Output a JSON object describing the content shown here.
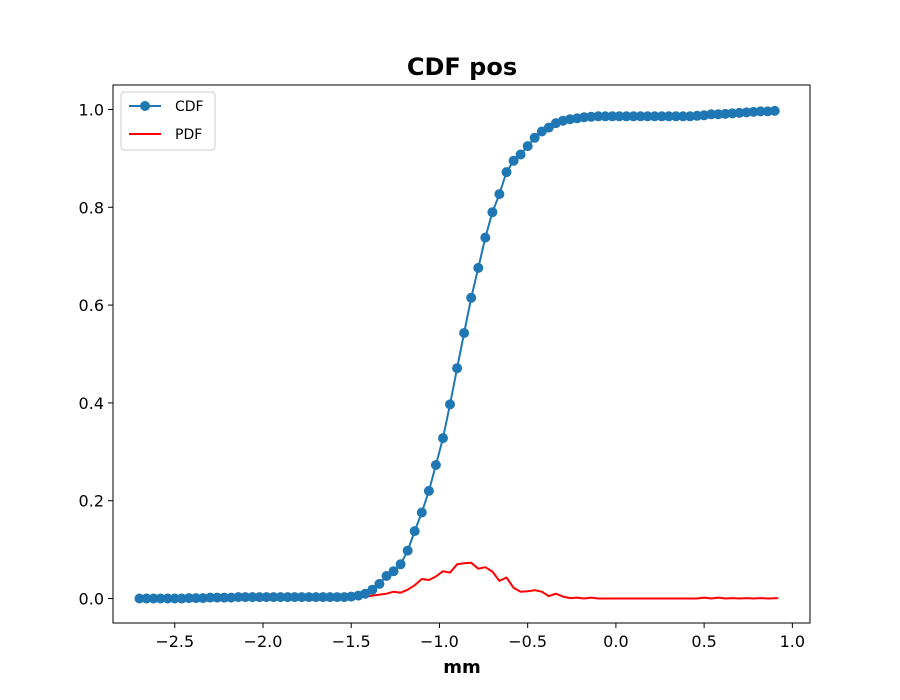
{
  "chart_data": {
    "type": "line",
    "title": "CDF pos",
    "xlabel": "mm",
    "ylabel": "",
    "xlim": [
      -2.85,
      1.1
    ],
    "ylim": [
      -0.05,
      1.05
    ],
    "xticks": [
      -2.5,
      -2.0,
      -1.5,
      -1.0,
      -0.5,
      0.0,
      0.5,
      1.0
    ],
    "xtick_labels": [
      "−2.5",
      "−2.0",
      "−1.5",
      "−1.0",
      "−0.5",
      "0.0",
      "0.5",
      "1.0"
    ],
    "yticks": [
      0.0,
      0.2,
      0.4,
      0.6,
      0.8,
      1.0
    ],
    "ytick_labels": [
      "0.0",
      "0.2",
      "0.4",
      "0.6",
      "0.8",
      "1.0"
    ],
    "legend_position": "top-left",
    "series": [
      {
        "name": "CDF",
        "color": "#1f77b4",
        "marker": "circle",
        "x": [
          -2.7,
          -2.66,
          -2.62,
          -2.58,
          -2.54,
          -2.5,
          -2.46,
          -2.42,
          -2.38,
          -2.34,
          -2.3,
          -2.26,
          -2.22,
          -2.18,
          -2.14,
          -2.1,
          -2.06,
          -2.02,
          -1.98,
          -1.94,
          -1.9,
          -1.86,
          -1.82,
          -1.78,
          -1.74,
          -1.7,
          -1.66,
          -1.62,
          -1.58,
          -1.54,
          -1.5,
          -1.46,
          -1.42,
          -1.38,
          -1.34,
          -1.3,
          -1.26,
          -1.22,
          -1.18,
          -1.14,
          -1.1,
          -1.06,
          -1.02,
          -0.98,
          -0.94,
          -0.9,
          -0.86,
          -0.82,
          -0.78,
          -0.74,
          -0.7,
          -0.66,
          -0.62,
          -0.58,
          -0.54,
          -0.5,
          -0.46,
          -0.42,
          -0.38,
          -0.34,
          -0.3,
          -0.26,
          -0.22,
          -0.18,
          -0.14,
          -0.1,
          -0.06,
          -0.02,
          0.02,
          0.06,
          0.1,
          0.14,
          0.18,
          0.22,
          0.26,
          0.3,
          0.34,
          0.38,
          0.42,
          0.46,
          0.5,
          0.54,
          0.58,
          0.62,
          0.66,
          0.7,
          0.74,
          0.78,
          0.82,
          0.86,
          0.9
        ],
        "y": [
          0.0,
          0.0,
          0.0,
          0.0,
          0.0,
          0.0,
          0.0,
          0.001,
          0.001,
          0.001,
          0.002,
          0.002,
          0.002,
          0.002,
          0.003,
          0.003,
          0.003,
          0.003,
          0.003,
          0.003,
          0.003,
          0.003,
          0.003,
          0.003,
          0.003,
          0.003,
          0.003,
          0.003,
          0.003,
          0.003,
          0.004,
          0.006,
          0.01,
          0.018,
          0.03,
          0.046,
          0.056,
          0.07,
          0.098,
          0.138,
          0.176,
          0.22,
          0.273,
          0.328,
          0.397,
          0.471,
          0.543,
          0.615,
          0.676,
          0.738,
          0.79,
          0.827,
          0.872,
          0.895,
          0.908,
          0.925,
          0.942,
          0.955,
          0.963,
          0.972,
          0.977,
          0.98,
          0.982,
          0.984,
          0.985,
          0.986,
          0.986,
          0.986,
          0.986,
          0.986,
          0.986,
          0.986,
          0.986,
          0.986,
          0.986,
          0.986,
          0.986,
          0.986,
          0.986,
          0.987,
          0.988,
          0.99,
          0.99,
          0.991,
          0.992,
          0.993,
          0.994,
          0.995,
          0.996,
          0.996,
          0.997
        ]
      },
      {
        "name": "PDF",
        "color": "#ff0000",
        "marker": "none",
        "x": [
          -2.7,
          -2.62,
          -2.54,
          -2.46,
          -2.38,
          -2.3,
          -2.22,
          -2.14,
          -2.06,
          -1.98,
          -1.9,
          -1.82,
          -1.74,
          -1.66,
          -1.58,
          -1.5,
          -1.46,
          -1.42,
          -1.38,
          -1.34,
          -1.3,
          -1.26,
          -1.22,
          -1.18,
          -1.14,
          -1.1,
          -1.06,
          -1.02,
          -0.98,
          -0.94,
          -0.9,
          -0.86,
          -0.82,
          -0.78,
          -0.74,
          -0.7,
          -0.66,
          -0.62,
          -0.58,
          -0.54,
          -0.5,
          -0.46,
          -0.42,
          -0.38,
          -0.34,
          -0.3,
          -0.26,
          -0.22,
          -0.18,
          -0.14,
          -0.1,
          -0.02,
          0.06,
          0.14,
          0.22,
          0.3,
          0.38,
          0.42,
          0.46,
          0.5,
          0.54,
          0.58,
          0.62,
          0.66,
          0.7,
          0.74,
          0.78,
          0.82,
          0.86,
          0.92
        ],
        "y": [
          0.0,
          0.0,
          0.0,
          0.0,
          0.0,
          0.0,
          0.0,
          0.001,
          0.001,
          0.001,
          0.001,
          0.001,
          0.001,
          0.001,
          0.001,
          0.001,
          0.003,
          0.004,
          0.006,
          0.008,
          0.01,
          0.014,
          0.012,
          0.018,
          0.027,
          0.04,
          0.038,
          0.045,
          0.056,
          0.053,
          0.07,
          0.072,
          0.073,
          0.061,
          0.064,
          0.055,
          0.036,
          0.043,
          0.022,
          0.014,
          0.015,
          0.017,
          0.014,
          0.005,
          0.01,
          0.004,
          0.001,
          0.002,
          0.0,
          0.002,
          0.0,
          0.0,
          0.0,
          0.0,
          0.0,
          0.0,
          0.0,
          0.0,
          0.0,
          0.002,
          0.0,
          0.002,
          0.0,
          0.001,
          0.0,
          0.001,
          0.0,
          0.001,
          0.0,
          0.001
        ]
      }
    ]
  }
}
